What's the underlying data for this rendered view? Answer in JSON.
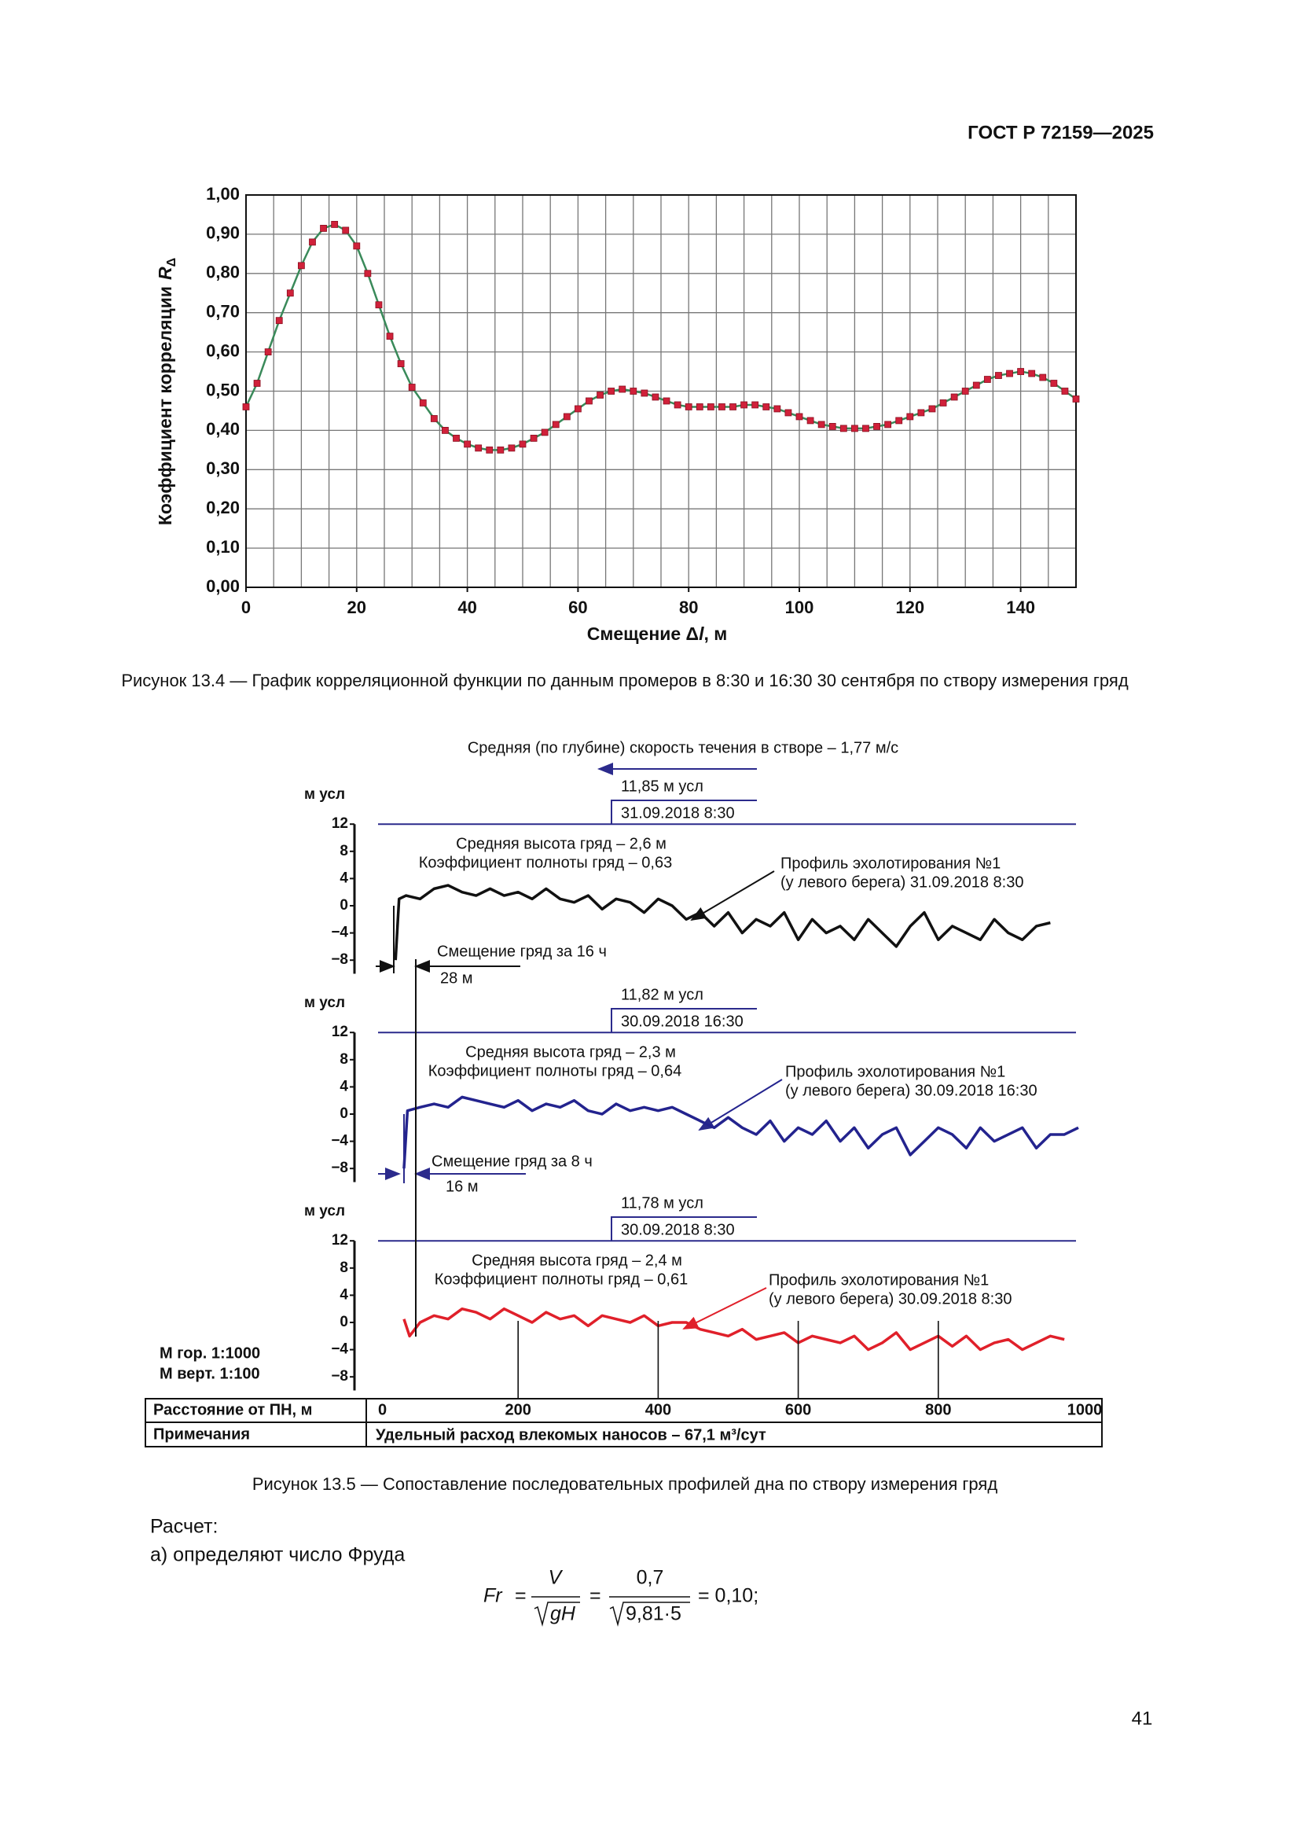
{
  "header": {
    "code": "ГОСТ Р 72159—2025"
  },
  "chart_data": [
    {
      "type": "line",
      "ylabel": {
        "prefix": "Коэффициент корреляции",
        "symbol": "R",
        "subscript": "Δ"
      },
      "xlabel": {
        "prefix": "Смещение Δ",
        "symbol": "l",
        "suffix": ", м"
      },
      "caption": "Рисунок 13.4 — График корреляционной функции по данным промеров в 8:30 и 16:30 30 сентября по створу измерения гряд",
      "xlim": [
        0,
        150
      ],
      "xticks": [
        0,
        20,
        40,
        60,
        80,
        100,
        120,
        140
      ],
      "xgrid": [
        0,
        5,
        10,
        15,
        20,
        25,
        30,
        35,
        40,
        45,
        50,
        55,
        60,
        65,
        70,
        75,
        80,
        85,
        90,
        95,
        100,
        105,
        110,
        115,
        120,
        125,
        130,
        135,
        140,
        145,
        150
      ],
      "ylim": [
        0,
        1
      ],
      "yticks": [
        {
          "value": 0,
          "label": "0,00"
        },
        {
          "value": 0.1,
          "label": "0,10"
        },
        {
          "value": 0.2,
          "label": "0,20"
        },
        {
          "value": 0.3,
          "label": "0,30"
        },
        {
          "value": 0.4,
          "label": "0,40"
        },
        {
          "value": 0.5,
          "label": "0,50"
        },
        {
          "value": 0.6,
          "label": "0,60"
        },
        {
          "value": 0.7,
          "label": "0,70"
        },
        {
          "value": 0.8,
          "label": "0,80"
        },
        {
          "value": 0.9,
          "label": "0,90"
        },
        {
          "value": 1,
          "label": "1,00"
        }
      ],
      "grid": true,
      "line_color": "#3a8a5a",
      "color": "#d0213a",
      "x": [
        0,
        2,
        4,
        6,
        8,
        10,
        12,
        14,
        16,
        18,
        20,
        22,
        24,
        26,
        28,
        30,
        32,
        34,
        36,
        38,
        40,
        42,
        44,
        46,
        48,
        50,
        52,
        54,
        56,
        58,
        60,
        62,
        64,
        66,
        68,
        70,
        72,
        74,
        76,
        78,
        80,
        82,
        84,
        86,
        88,
        90,
        92,
        94,
        96,
        98,
        100,
        102,
        104,
        106,
        108,
        110,
        112,
        114,
        116,
        118,
        120,
        122,
        124,
        126,
        128,
        130,
        132,
        134,
        136,
        138,
        140,
        142,
        144,
        146,
        148,
        150
      ],
      "values": [
        0.46,
        0.52,
        0.6,
        0.68,
        0.75,
        0.82,
        0.88,
        0.915,
        0.925,
        0.91,
        0.87,
        0.8,
        0.72,
        0.64,
        0.57,
        0.51,
        0.47,
        0.43,
        0.4,
        0.38,
        0.365,
        0.355,
        0.35,
        0.35,
        0.355,
        0.365,
        0.38,
        0.395,
        0.415,
        0.435,
        0.455,
        0.475,
        0.49,
        0.5,
        0.505,
        0.5,
        0.495,
        0.485,
        0.475,
        0.465,
        0.46,
        0.46,
        0.46,
        0.46,
        0.46,
        0.465,
        0.465,
        0.46,
        0.455,
        0.445,
        0.435,
        0.425,
        0.415,
        0.41,
        0.405,
        0.405,
        0.405,
        0.41,
        0.415,
        0.425,
        0.435,
        0.445,
        0.455,
        0.47,
        0.485,
        0.5,
        0.515,
        0.53,
        0.54,
        0.545,
        0.55,
        0.545,
        0.535,
        0.52,
        0.5,
        0.48
      ]
    },
    {
      "type": "profiles",
      "velocity_label": "Средняя (по глубине) скорость течения в створе – 1,77 м/с",
      "ylabel": "м усл",
      "ylim": [
        -10,
        12
      ],
      "yticks": [
        12,
        8,
        4,
        0,
        {
          "value": -4,
          "label": "−4"
        },
        {
          "value": -8,
          "label": "−8"
        }
      ],
      "xlim": [
        0,
        1000
      ],
      "xticks": [
        0,
        200,
        400,
        600,
        800,
        1000
      ],
      "xaxis_label": "Расстояние от ПН, м",
      "notes_label": "Примечания",
      "notes_text": "Удельный расход влекомых наносов – 67,1 м³/сут",
      "scale_h": "М гор. 1:1000",
      "scale_v": "М верт. 1:100",
      "caption": "Рисунок 13.5 — Сопоставление последовательных профилей дна по створу измерения гряд",
      "shifts": [
        {
          "label": "Смещение гряд за 16 ч",
          "value_label": "28 м"
        },
        {
          "label": "Смещение гряд за 8 ч",
          "value_label": "16 м"
        }
      ],
      "panels": [
        {
          "level_label": "11,85 м усл",
          "date": "31.09.2018 8:30",
          "height_label": "Средняя высота гряд – 2,6 м",
          "fullness_label": "Коэффициент полноты гряд – 0,63",
          "profile_label": "Профиль эхолотирования №1",
          "profile_label2": "(у левого берега) 31.09.2018 8:30",
          "color": "#111111",
          "x": [
            25,
            30,
            40,
            60,
            80,
            100,
            120,
            140,
            160,
            180,
            200,
            220,
            240,
            260,
            280,
            300,
            320,
            340,
            360,
            380,
            400,
            420,
            440,
            460,
            480,
            500,
            520,
            540,
            560,
            580,
            600,
            620,
            640,
            660,
            680,
            700,
            720,
            740,
            760,
            780,
            800,
            820,
            840,
            860,
            880,
            900,
            920,
            940,
            960
          ],
          "values": [
            -8,
            1,
            1.5,
            1,
            2.5,
            3,
            2,
            1.5,
            2.5,
            1.5,
            2,
            1,
            2.5,
            1,
            0.5,
            1.5,
            -0.5,
            1,
            0.5,
            -1,
            1,
            0,
            -2,
            -1,
            -3,
            -1,
            -4,
            -2,
            -3,
            -1,
            -5,
            -2,
            -4,
            -3,
            -5,
            -2,
            -4,
            -6,
            -3,
            -1,
            -5,
            -3,
            -4,
            -5,
            -2,
            -4,
            -5,
            -3,
            -2.5
          ]
        },
        {
          "level_label": "11,82 м усл",
          "date": "30.09.2018 16:30",
          "height_label": "Средняя высота гряд – 2,3 м",
          "fullness_label": "Коэффициент полноты гряд – 0,64",
          "profile_label": "Профиль эхолотирования №1",
          "profile_label2": "(у левого берега) 30.09.2018 16:30",
          "color": "#23238e",
          "x": [
            37,
            42,
            60,
            80,
            100,
            120,
            140,
            160,
            180,
            200,
            220,
            240,
            260,
            280,
            300,
            320,
            340,
            360,
            380,
            400,
            420,
            440,
            460,
            480,
            500,
            520,
            540,
            560,
            580,
            600,
            620,
            640,
            660,
            680,
            700,
            720,
            740,
            760,
            780,
            800,
            820,
            840,
            860,
            880,
            900,
            920,
            940,
            960,
            980,
            1000
          ],
          "values": [
            -8,
            0.5,
            1,
            1.5,
            1,
            2.5,
            2,
            1.5,
            1,
            2,
            0.5,
            1.5,
            1,
            2,
            0.5,
            0,
            1.5,
            0.5,
            1,
            0.5,
            1,
            0,
            -1,
            -2,
            -0.5,
            -2,
            -3,
            -1,
            -4,
            -2,
            -3,
            -1,
            -4,
            -2,
            -5,
            -3,
            -2,
            -6,
            -4,
            -2,
            -3,
            -5,
            -2,
            -4,
            -3,
            -2,
            -5,
            -3,
            -3,
            -2
          ]
        },
        {
          "level_label": "11,78 м усл",
          "date": "30.09.2018 8:30",
          "height_label": "Средняя высота гряд – 2,4 м",
          "fullness_label": "Коэффициент полноты гряд – 0,61",
          "profile_label": "Профиль эхолотирования №1",
          "profile_label2": "(у левого берега) 30.09.2018 8:30",
          "color": "#e0202a",
          "x": [
            37,
            45,
            60,
            80,
            100,
            120,
            140,
            160,
            180,
            200,
            220,
            240,
            260,
            280,
            300,
            320,
            340,
            360,
            380,
            400,
            420,
            440,
            460,
            480,
            500,
            520,
            540,
            560,
            580,
            600,
            620,
            640,
            660,
            680,
            700,
            720,
            740,
            760,
            780,
            800,
            820,
            840,
            860,
            880,
            900,
            920,
            940,
            960,
            980
          ],
          "values": [
            0.5,
            -2,
            0,
            1,
            0.5,
            2,
            1.5,
            0.5,
            2,
            1,
            0,
            1.5,
            0.5,
            1,
            -0.5,
            1,
            0.5,
            0,
            1,
            -0.5,
            0,
            0,
            -1,
            -1.5,
            -2,
            -1,
            -2.5,
            -2,
            -1.5,
            -3,
            -2,
            -2.5,
            -3,
            -2,
            -4,
            -3,
            -1.5,
            -4,
            -3,
            -2,
            -3.5,
            -2,
            -4,
            -3,
            -2.5,
            -4,
            -3,
            -2,
            -2.5
          ]
        }
      ]
    }
  ],
  "calc": {
    "title": "Расчет:",
    "step": "а) определяют число Фруда"
  },
  "formula": {
    "lhs": "Fr",
    "eq": "=",
    "num1": "V",
    "den1": "gH",
    "num2": "0,7",
    "den2": "9,81·5",
    "result": "= 0,10;"
  },
  "page_number": "41"
}
